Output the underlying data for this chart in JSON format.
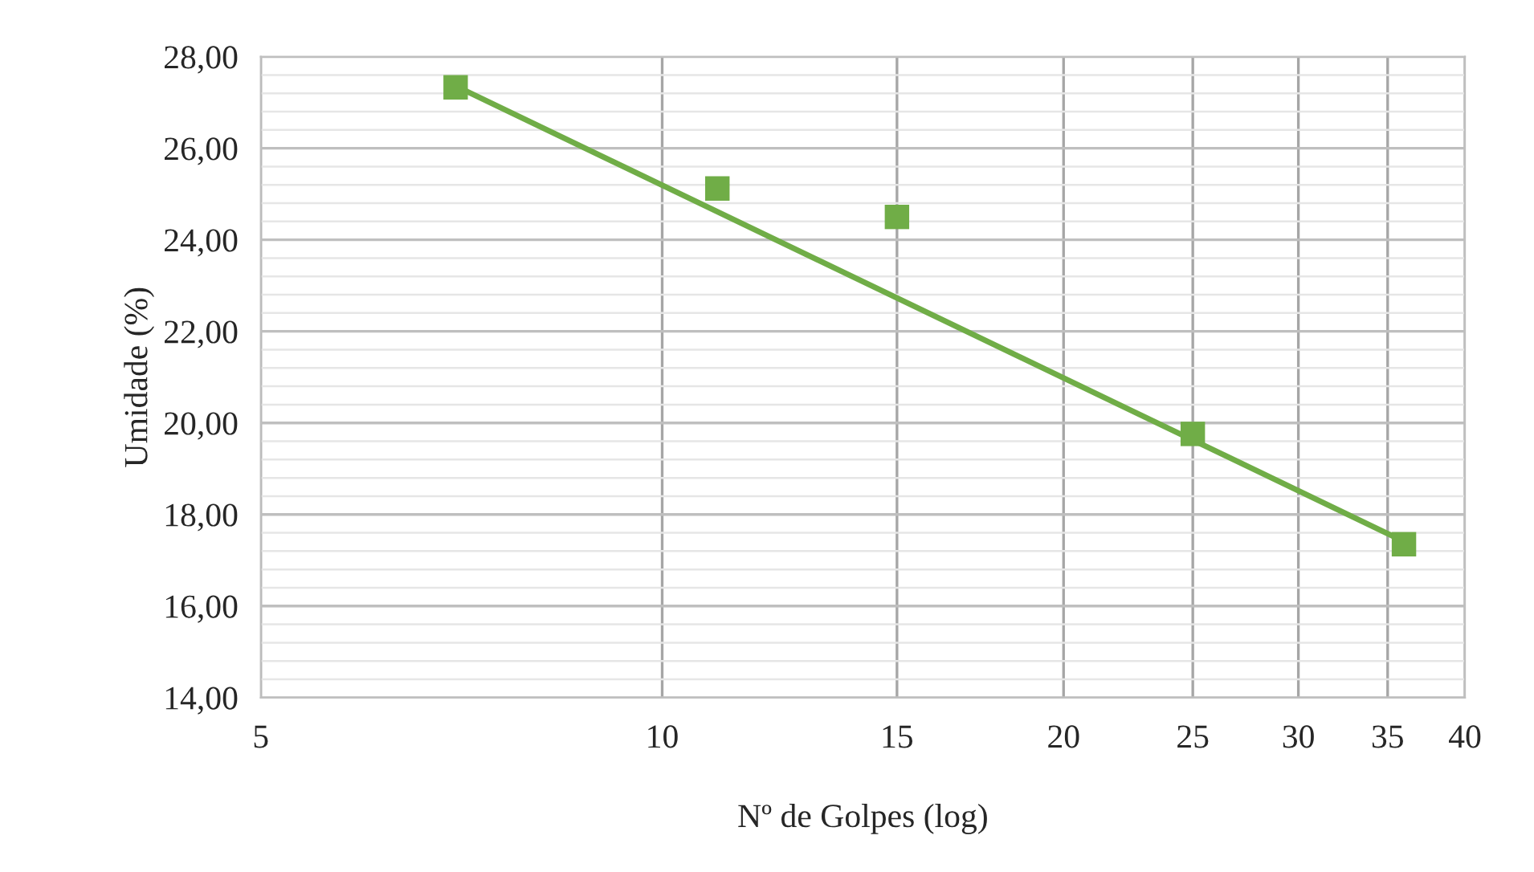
{
  "chart_data": {
    "type": "scatter",
    "xlabel": "Nº de Golpes (log)",
    "ylabel": "Umidade (%)",
    "log": "x",
    "grid": true,
    "legend": false,
    "xlim": [
      5,
      40
    ],
    "xticks": [
      5,
      10,
      15,
      20,
      25,
      30,
      35,
      40
    ],
    "ylim": [
      14,
      28
    ],
    "yticks": [
      {
        "value": 14,
        "label": "14,00"
      },
      {
        "value": 14.4,
        "label": null
      },
      {
        "value": 14.8,
        "label": null
      },
      {
        "value": 15.2,
        "label": null
      },
      {
        "value": 15.6,
        "label": null
      },
      {
        "value": 16,
        "label": "16,00"
      },
      {
        "value": 16.4,
        "label": null
      },
      {
        "value": 16.8,
        "label": null
      },
      {
        "value": 17.2,
        "label": null
      },
      {
        "value": 17.6,
        "label": null
      },
      {
        "value": 18,
        "label": "18,00"
      },
      {
        "value": 18.4,
        "label": null
      },
      {
        "value": 18.8,
        "label": null
      },
      {
        "value": 19.2,
        "label": null
      },
      {
        "value": 19.6,
        "label": null
      },
      {
        "value": 20,
        "label": "20,00"
      },
      {
        "value": 20.4,
        "label": null
      },
      {
        "value": 20.8,
        "label": null
      },
      {
        "value": 21.2,
        "label": null
      },
      {
        "value": 21.6,
        "label": null
      },
      {
        "value": 22,
        "label": "22,00"
      },
      {
        "value": 22.4,
        "label": null
      },
      {
        "value": 22.8,
        "label": null
      },
      {
        "value": 23.2,
        "label": null
      },
      {
        "value": 23.6,
        "label": null
      },
      {
        "value": 24,
        "label": "24,00"
      },
      {
        "value": 24.4,
        "label": null
      },
      {
        "value": 24.8,
        "label": null
      },
      {
        "value": 25.2,
        "label": null
      },
      {
        "value": 25.6,
        "label": null
      },
      {
        "value": 26,
        "label": "26,00"
      },
      {
        "value": 26.4,
        "label": null
      },
      {
        "value": 26.8,
        "label": null
      },
      {
        "value": 27.2,
        "label": null
      },
      {
        "value": 27.6,
        "label": null
      },
      {
        "value": 28,
        "label": "28,00"
      }
    ],
    "series": [
      {
        "marker": "square",
        "color": "#70ad47",
        "x": [
          7,
          11,
          15,
          25,
          36
        ],
        "values": [
          27.33,
          25.12,
          24.5,
          19.76,
          17.35
        ]
      },
      {
        "type": "line",
        "marker": "none",
        "color": "#70ad47",
        "x": [
          7,
          36
        ],
        "values": [
          27.36,
          17.41
        ]
      }
    ]
  }
}
